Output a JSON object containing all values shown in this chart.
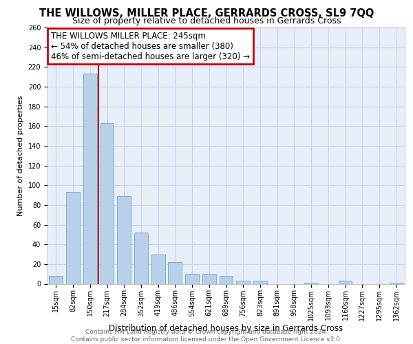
{
  "title": "THE WILLOWS, MILLER PLACE, GERRARDS CROSS, SL9 7QQ",
  "subtitle": "Size of property relative to detached houses in Gerrards Cross",
  "xlabel": "Distribution of detached houses by size in Gerrards Cross",
  "ylabel": "Number of detached properties",
  "footer_line1": "Contains HM Land Registry data © Crown copyright and database right 2024.",
  "footer_line2": "Contains public sector information licensed under the Open Government Licence v3.0.",
  "categories": [
    "15sqm",
    "82sqm",
    "150sqm",
    "217sqm",
    "284sqm",
    "352sqm",
    "419sqm",
    "486sqm",
    "554sqm",
    "621sqm",
    "689sqm",
    "756sqm",
    "823sqm",
    "891sqm",
    "958sqm",
    "1025sqm",
    "1093sqm",
    "1160sqm",
    "1227sqm",
    "1295sqm",
    "1362sqm"
  ],
  "values": [
    8,
    93,
    213,
    163,
    89,
    52,
    30,
    22,
    10,
    10,
    8,
    3,
    3,
    0,
    0,
    1,
    0,
    3,
    0,
    0,
    1
  ],
  "bar_color": "#b8d0e8",
  "bar_edge_color": "#7aaed0",
  "vline_x": 2.5,
  "annotation_text_line1": "THE WILLOWS MILLER PLACE: 245sqm",
  "annotation_text_line2": "← 54% of detached houses are smaller (380)",
  "annotation_text_line3": "46% of semi-detached houses are larger (320) →",
  "annotation_box_color": "#cc0000",
  "vline_color": "#cc0000",
  "ylim": [
    0,
    260
  ],
  "yticks": [
    0,
    20,
    40,
    60,
    80,
    100,
    120,
    140,
    160,
    180,
    200,
    220,
    240,
    260
  ],
  "grid_color": "#c8d4e8",
  "bg_color": "#e8eef8",
  "title_fontsize": 10.5,
  "subtitle_fontsize": 9,
  "axis_label_fontsize": 8.5,
  "tick_fontsize": 7,
  "ylabel_fontsize": 8,
  "footer_fontsize": 6.5,
  "annotation_fontsize": 8.5
}
